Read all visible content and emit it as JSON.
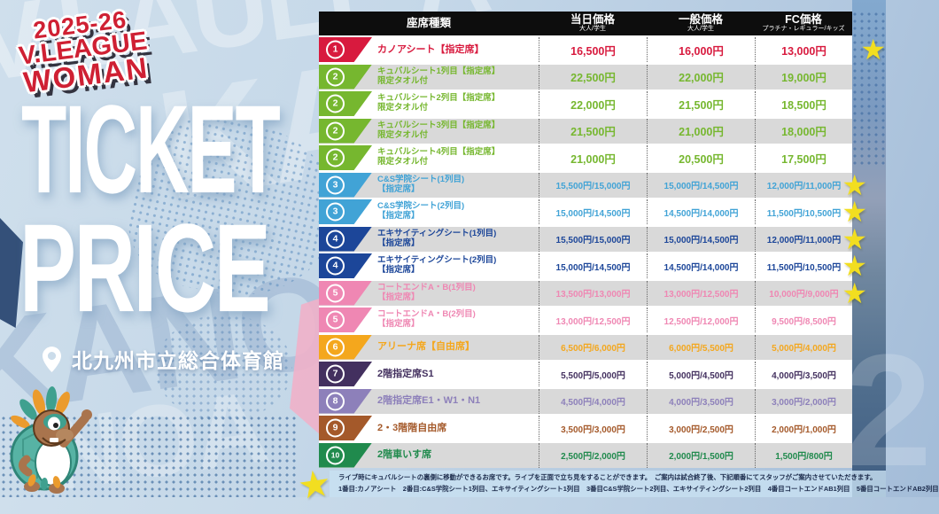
{
  "branding": {
    "season": "2025-26",
    "league_line1": "V.LEAGUE",
    "league_line2": "WOMAN",
    "title_line1": "TICKET",
    "title_line2": "PRICE",
    "venue": "北九州市立総合体育館"
  },
  "table": {
    "header": {
      "seat": "座席種類",
      "day": "当日価格",
      "day_sub": "大人/学生",
      "general": "一般価格",
      "general_sub": "大人/学生",
      "fc": "FC価格",
      "fc_sub": "プラチナ・レギュラー/キッズ"
    },
    "rows": [
      {
        "num": "1",
        "name_lines": [
          "カノアシート【指定席】"
        ],
        "day": "16,500円",
        "general": "16,000円",
        "fc": "13,000円",
        "color": "#d81a3e",
        "star": true
      },
      {
        "num": "2",
        "name_lines": [
          "キュバルシート1列目【指定席】",
          "限定タオル付"
        ],
        "day": "22,500円",
        "general": "22,000円",
        "fc": "19,000円",
        "color": "#76b72f",
        "star": false
      },
      {
        "num": "2",
        "name_lines": [
          "キュバルシート2列目【指定席】",
          "限定タオル付"
        ],
        "day": "22,000円",
        "general": "21,500円",
        "fc": "18,500円",
        "color": "#76b72f",
        "star": false
      },
      {
        "num": "2",
        "name_lines": [
          "キュバルシート3列目【指定席】",
          "限定タオル付"
        ],
        "day": "21,500円",
        "general": "21,000円",
        "fc": "18,000円",
        "color": "#76b72f",
        "star": false
      },
      {
        "num": "2",
        "name_lines": [
          "キュバルシート4列目【指定席】",
          "限定タオル付"
        ],
        "day": "21,000円",
        "general": "20,500円",
        "fc": "17,500円",
        "color": "#76b72f",
        "star": false
      },
      {
        "num": "3",
        "name_lines": [
          "C&S学院シート(1列目)",
          "【指定席】"
        ],
        "day": "15,500円/15,000円",
        "general": "15,000円/14,500円",
        "fc": "12,000円/11,000円",
        "color": "#41a3d6",
        "star": true
      },
      {
        "num": "3",
        "name_lines": [
          "C&S学院シート(2列目)",
          "【指定席】"
        ],
        "day": "15,000円/14,500円",
        "general": "14,500円/14,000円",
        "fc": "11,500円/10,500円",
        "color": "#41a3d6",
        "star": true
      },
      {
        "num": "4",
        "name_lines": [
          "エキサイティングシート(1列目)",
          "【指定席】"
        ],
        "day": "15,500円/15,000円",
        "general": "15,000円/14,500円",
        "fc": "12,000円/11,000円",
        "color": "#1c4699",
        "star": true
      },
      {
        "num": "4",
        "name_lines": [
          "エキサイティングシート(2列目)",
          "【指定席】"
        ],
        "day": "15,000円/14,500円",
        "general": "14,500円/14,000円",
        "fc": "11,500円/10,500円",
        "color": "#1c4699",
        "star": true
      },
      {
        "num": "5",
        "name_lines": [
          "コートエンドA・B(1列目)",
          "【指定席】"
        ],
        "day": "13,500円/13,000円",
        "general": "13,000円/12,500円",
        "fc": "10,000円/9,000円",
        "color": "#ef87b3",
        "star": true
      },
      {
        "num": "5",
        "name_lines": [
          "コートエンドA・B(2列目)",
          "【指定席】"
        ],
        "day": "13,000円/12,500円",
        "general": "12,500円/12,000円",
        "fc": "9,500円/8,500円",
        "color": "#ef87b3",
        "star": false
      },
      {
        "num": "6",
        "name_lines": [
          "アリーナ席【自由席】"
        ],
        "day": "6,500円/6,000円",
        "general": "6,000円/5,500円",
        "fc": "5,000円/4,000円",
        "color": "#f4a71d",
        "star": false
      },
      {
        "num": "7",
        "name_lines": [
          "2階指定席S1"
        ],
        "day": "5,500円/5,000円",
        "general": "5,000円/4,500円",
        "fc": "4,000円/3,500円",
        "color": "#43305f",
        "star": false
      },
      {
        "num": "8",
        "name_lines": [
          "2階指定席E1・W1・N1"
        ],
        "day": "4,500円/4,000円",
        "general": "4,000円/3,500円",
        "fc": "3,000円/2,000円",
        "color": "#8d80ba",
        "star": false
      },
      {
        "num": "9",
        "name_lines": [
          "2・3階階自由席"
        ],
        "day": "3,500円/3,000円",
        "general": "3,000円/2,500円",
        "fc": "2,000円/1,000円",
        "color": "#a4592a",
        "star": false
      },
      {
        "num": "10",
        "name_lines": [
          "2階車いす席"
        ],
        "day": "2,500円/2,000円",
        "general": "2,000円/1,500円",
        "fc": "1,500円/800円",
        "color": "#208a4d",
        "star": false
      }
    ]
  },
  "footnote": {
    "line1": "ライブ時にキュバルシートの裏側に移動ができるお席です。ライブを正面で立ち見をすることができます。　ご案内は試合終了後、下記順番にてスタッフがご案内させていただきます。",
    "line2": "1番目:カノアシート　2番目:C&S学院シート1列目、エキサイティングシート1列目　3番目C&S学院シート2列目、エキサイティングシート2列目　4番目コートエンドAB1列目　5番目コートエンドAB2列目"
  },
  "icons": {
    "star": "★"
  },
  "colors": {
    "star": "#f2de20",
    "header_bg": "#0d0d0d",
    "row_alt_gray": "#d9d9d9"
  },
  "background_letters": [
    "V.LAULE'A",
    "KA",
    "KANOA",
    "NOA",
    "2"
  ]
}
